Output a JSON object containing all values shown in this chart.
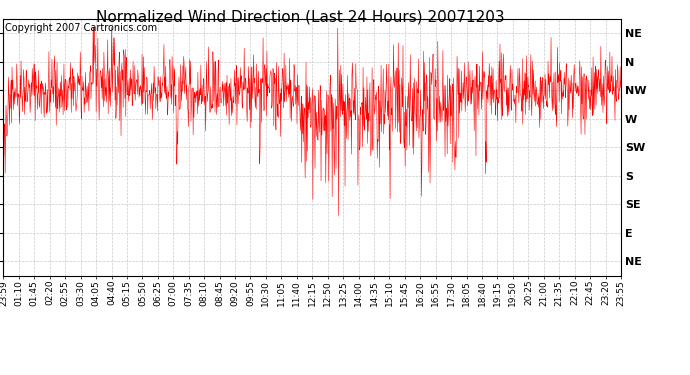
{
  "title": "Normalized Wind Direction (Last 24 Hours) 20071203",
  "copyright_text": "Copyright 2007 Cartronics.com",
  "background_color": "#ffffff",
  "plot_bg_color": "#ffffff",
  "line_color": "red",
  "grid_color": "#bbbbbb",
  "y_labels": [
    "NE",
    "N",
    "NW",
    "W",
    "SW",
    "S",
    "SE",
    "E",
    "NE"
  ],
  "y_values": [
    9,
    8,
    7,
    6,
    5,
    4,
    3,
    2,
    1
  ],
  "y_min": 0.5,
  "y_max": 9.5,
  "x_tick_labels": [
    "23:59",
    "01:10",
    "01:45",
    "02:20",
    "02:55",
    "03:30",
    "04:05",
    "04:40",
    "05:15",
    "05:50",
    "06:25",
    "07:00",
    "07:35",
    "08:10",
    "08:45",
    "09:20",
    "09:55",
    "10:30",
    "11:05",
    "11:40",
    "12:15",
    "12:50",
    "13:25",
    "14:00",
    "14:35",
    "15:10",
    "15:45",
    "16:20",
    "16:55",
    "17:30",
    "18:05",
    "18:40",
    "19:15",
    "19:50",
    "20:25",
    "21:00",
    "21:35",
    "22:10",
    "22:45",
    "23:20",
    "23:55"
  ],
  "title_fontsize": 11,
  "copyright_fontsize": 7,
  "y_label_fontsize": 8,
  "tick_label_fontsize": 6.5,
  "n_points": 1440,
  "seed": 42
}
